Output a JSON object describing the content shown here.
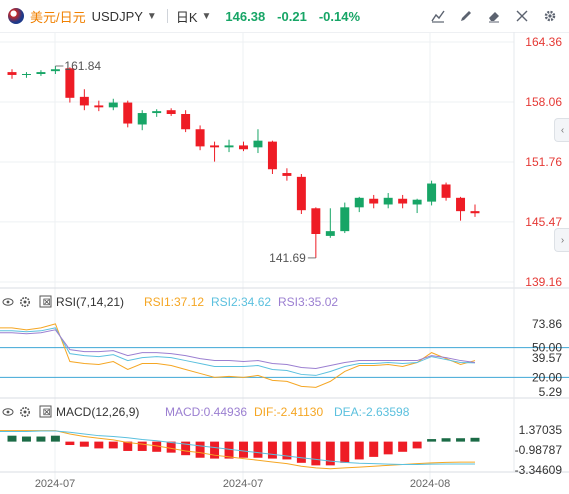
{
  "header": {
    "symbol_name": "美元/日元",
    "symbol_code": "USDJPY",
    "period": "日K",
    "price": "146.38",
    "change": "-0.21",
    "change_pct": "-0.14%"
  },
  "indicators": {
    "rsi": {
      "label": "RSI(7,14,21)",
      "rsi1": "RSI1:37.12",
      "rsi2": "RSI2:34.62",
      "rsi3": "RSI3:35.02"
    },
    "macd": {
      "label": "MACD(12,26,9)",
      "macd": "MACD:0.44936",
      "dif": "DIF:-2.41130",
      "dea": "DEA:-2.63598"
    }
  },
  "colors": {
    "up": "#17a566",
    "down": "#ee1c25",
    "rsi1": "#f5a623",
    "rsi2": "#5bc0de",
    "rsi3": "#9b7fd1",
    "accent": "#f08000"
  },
  "chart_data": {
    "type": "candlestick",
    "price_axis": {
      "ticks": [
        "164.36",
        "158.06",
        "151.76",
        "145.47",
        "139.16"
      ],
      "range": [
        139.16,
        164.36
      ]
    },
    "x_ticks": [
      "2024-07",
      "2024-07",
      "2024-08"
    ],
    "annotations": {
      "high": "161.84",
      "low": "141.69"
    },
    "candles": [
      {
        "o": 161.2,
        "h": 161.5,
        "l": 160.5,
        "c": 160.9
      },
      {
        "o": 160.9,
        "h": 161.2,
        "l": 160.6,
        "c": 161.0
      },
      {
        "o": 161.0,
        "h": 161.4,
        "l": 160.8,
        "c": 161.2
      },
      {
        "o": 161.3,
        "h": 161.84,
        "l": 161.0,
        "c": 161.5
      },
      {
        "o": 161.6,
        "h": 161.7,
        "l": 158.0,
        "c": 158.5
      },
      {
        "o": 158.6,
        "h": 159.4,
        "l": 157.2,
        "c": 157.7
      },
      {
        "o": 157.7,
        "h": 158.2,
        "l": 157.1,
        "c": 157.5
      },
      {
        "o": 157.5,
        "h": 158.4,
        "l": 157.2,
        "c": 158.0
      },
      {
        "o": 158.0,
        "h": 158.2,
        "l": 155.4,
        "c": 155.8
      },
      {
        "o": 155.7,
        "h": 157.2,
        "l": 155.1,
        "c": 156.9
      },
      {
        "o": 156.9,
        "h": 157.3,
        "l": 156.5,
        "c": 157.1
      },
      {
        "o": 157.2,
        "h": 157.4,
        "l": 156.6,
        "c": 156.8
      },
      {
        "o": 156.8,
        "h": 157.2,
        "l": 154.9,
        "c": 155.2
      },
      {
        "o": 155.2,
        "h": 155.6,
        "l": 153.0,
        "c": 153.4
      },
      {
        "o": 153.5,
        "h": 153.9,
        "l": 151.8,
        "c": 153.3
      },
      {
        "o": 153.3,
        "h": 154.1,
        "l": 152.8,
        "c": 153.5
      },
      {
        "o": 153.5,
        "h": 153.9,
        "l": 152.9,
        "c": 153.1
      },
      {
        "o": 153.3,
        "h": 155.2,
        "l": 152.7,
        "c": 154.0
      },
      {
        "o": 153.9,
        "h": 154.0,
        "l": 150.5,
        "c": 151.0
      },
      {
        "o": 150.6,
        "h": 151.1,
        "l": 149.8,
        "c": 150.3
      },
      {
        "o": 150.2,
        "h": 150.5,
        "l": 146.3,
        "c": 146.7
      },
      {
        "o": 146.9,
        "h": 147.0,
        "l": 141.69,
        "c": 144.2
      },
      {
        "o": 144.0,
        "h": 146.9,
        "l": 143.8,
        "c": 144.5
      },
      {
        "o": 144.5,
        "h": 147.5,
        "l": 144.3,
        "c": 147.0
      },
      {
        "o": 147.0,
        "h": 148.1,
        "l": 146.5,
        "c": 148.0
      },
      {
        "o": 147.9,
        "h": 148.3,
        "l": 146.9,
        "c": 147.4
      },
      {
        "o": 147.3,
        "h": 148.5,
        "l": 146.9,
        "c": 148.0
      },
      {
        "o": 147.9,
        "h": 148.3,
        "l": 146.9,
        "c": 147.4
      },
      {
        "o": 147.3,
        "h": 147.9,
        "l": 146.4,
        "c": 147.8
      },
      {
        "o": 147.6,
        "h": 149.8,
        "l": 147.2,
        "c": 149.5
      },
      {
        "o": 149.4,
        "h": 149.6,
        "l": 147.7,
        "c": 148.0
      },
      {
        "o": 148.0,
        "h": 148.1,
        "l": 145.6,
        "c": 146.6
      },
      {
        "o": 146.6,
        "h": 147.3,
        "l": 146.0,
        "c": 146.38
      }
    ],
    "rsi": {
      "ticks": [
        "73.86",
        "50.00",
        "39.57",
        "20.00",
        "5.29"
      ],
      "levels": [
        50,
        20
      ],
      "series": [
        {
          "name": "RSI1",
          "values": [
            70,
            68,
            70,
            74,
            36,
            34,
            33,
            36,
            28,
            34,
            34,
            32,
            28,
            24,
            20,
            21,
            20,
            22,
            17,
            16,
            11,
            10,
            16,
            26,
            32,
            32,
            33,
            31,
            35,
            45,
            39,
            33,
            37
          ]
        },
        {
          "name": "RSI2",
          "values": [
            67,
            66,
            67,
            70,
            44,
            42,
            41,
            43,
            37,
            40,
            41,
            40,
            37,
            34,
            31,
            31,
            31,
            32,
            28,
            27,
            23,
            22,
            26,
            31,
            34,
            34,
            35,
            34,
            35,
            41,
            38,
            35,
            34.62
          ]
        },
        {
          "name": "RSI3",
          "values": [
            65,
            64,
            65,
            68,
            48,
            46,
            46,
            47,
            42,
            45,
            45,
            44,
            42,
            39,
            37,
            37,
            36,
            37,
            34,
            33,
            30,
            29,
            32,
            35,
            37,
            37,
            37,
            37,
            37,
            42,
            40,
            37,
            35.02
          ]
        }
      ]
    },
    "macd": {
      "ticks": [
        "1.37035",
        "-0.98787",
        "-3.34609"
      ],
      "histogram": [
        0.7,
        0.6,
        0.6,
        0.7,
        -0.4,
        -0.6,
        -0.8,
        -0.8,
        -1.1,
        -1.1,
        -1.2,
        -1.3,
        -1.6,
        -1.9,
        -2.0,
        -2.0,
        -1.9,
        -1.9,
        -2.0,
        -2.1,
        -2.5,
        -2.8,
        -2.8,
        -2.5,
        -2.1,
        -1.8,
        -1.5,
        -1.2,
        -0.8,
        0.3,
        0.4,
        0.4,
        0.44936
      ],
      "dif": [
        1.3,
        1.3,
        1.3,
        1.3,
        0.9,
        0.6,
        0.4,
        0.2,
        -0.1,
        -0.3,
        -0.5,
        -0.8,
        -1.1,
        -1.3,
        -1.6,
        -1.8,
        -2.0,
        -2.2,
        -2.4,
        -2.6,
        -2.9,
        -3.1,
        -3.2,
        -3.1,
        -3.0,
        -2.9,
        -2.8,
        -2.7,
        -2.6,
        -2.5,
        -2.45,
        -2.42,
        -2.4113
      ],
      "dea": [
        1.2,
        1.2,
        1.25,
        1.25,
        1.1,
        0.9,
        0.7,
        0.6,
        0.45,
        0.25,
        0.1,
        -0.1,
        -0.3,
        -0.5,
        -0.7,
        -0.9,
        -1.1,
        -1.3,
        -1.5,
        -1.7,
        -1.9,
        -2.1,
        -2.3,
        -2.45,
        -2.55,
        -2.6,
        -2.65,
        -2.7,
        -2.7,
        -2.65,
        -2.64,
        -2.637,
        -2.63598
      ]
    }
  }
}
